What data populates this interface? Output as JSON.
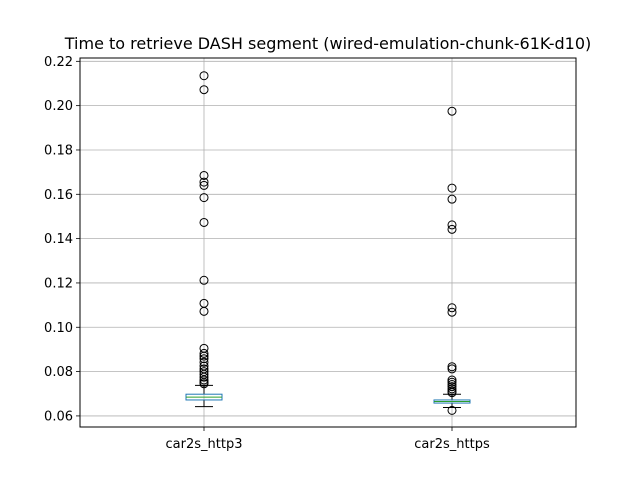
{
  "chart_data": {
    "type": "boxplot",
    "title": "Time to retrieve DASH segment (wired-emulation-chunk-61K-d10)",
    "xlabel": "",
    "ylabel": "",
    "ylim": [
      0.055,
      0.2215
    ],
    "yticks": [
      0.06,
      0.08,
      0.1,
      0.12,
      0.14,
      0.16,
      0.18,
      0.2,
      0.22
    ],
    "ytick_labels": [
      "0.06",
      "0.08",
      "0.10",
      "0.12",
      "0.14",
      "0.16",
      "0.18",
      "0.20",
      "0.22"
    ],
    "grid": true,
    "categories": [
      "car2s_http3",
      "car2s_https"
    ],
    "series": [
      {
        "whisker_low": 0.0642,
        "q1": 0.0672,
        "median": 0.0685,
        "q3": 0.0698,
        "whisker_high": 0.0738,
        "outliers": [
          0.2135,
          0.2072,
          0.1685,
          0.1655,
          0.164,
          0.1585,
          0.1473,
          0.1212,
          0.1108,
          0.1072,
          0.0905,
          0.0882,
          0.087,
          0.0858,
          0.0842,
          0.0825,
          0.0812,
          0.08,
          0.0788,
          0.0775,
          0.0762,
          0.0752,
          0.0745
        ]
      },
      {
        "whisker_low": 0.0638,
        "q1": 0.0658,
        "median": 0.0665,
        "q3": 0.0672,
        "whisker_high": 0.0698,
        "outliers": [
          0.1975,
          0.1628,
          0.1578,
          0.1462,
          0.1442,
          0.1088,
          0.1068,
          0.0822,
          0.0812,
          0.0762,
          0.0752,
          0.0742,
          0.0732,
          0.0722,
          0.0712,
          0.0705,
          0.0625
        ]
      }
    ],
    "colors": {
      "box": "#1f77b4",
      "median": "#2ca02c",
      "whisker": "#000000",
      "grid": "#b0b0b0",
      "axes": "#000000"
    }
  }
}
